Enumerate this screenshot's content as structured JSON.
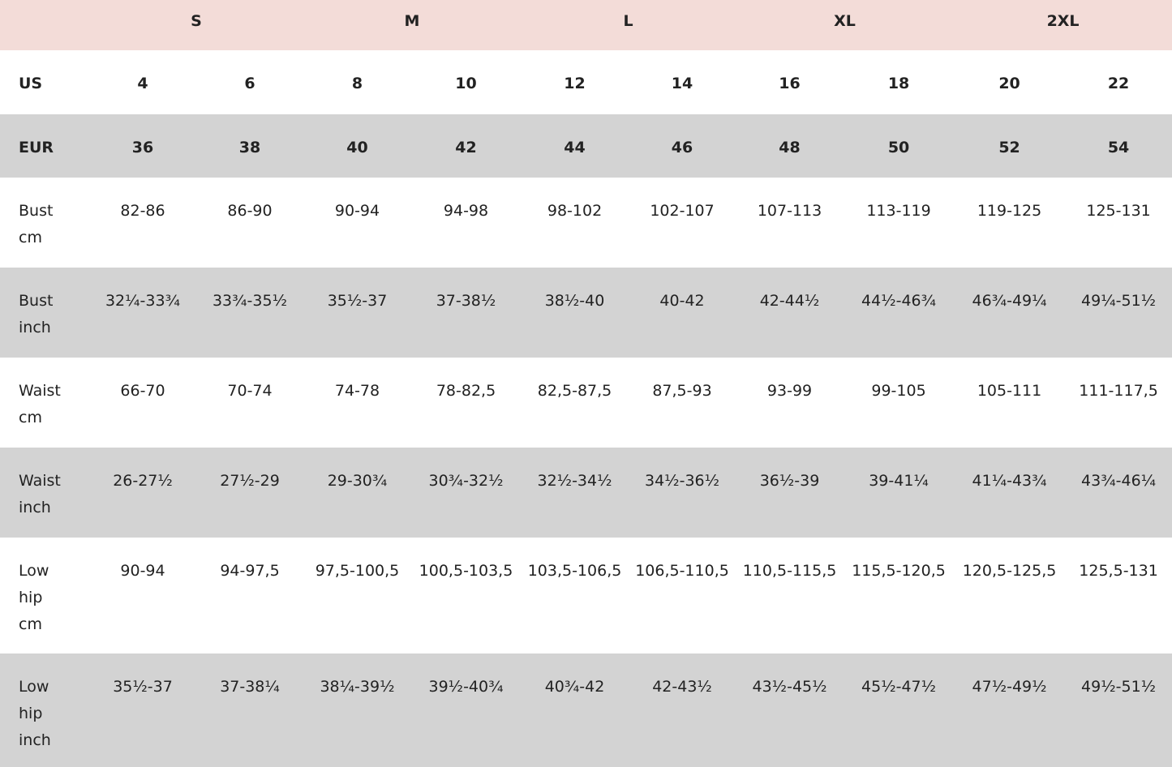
{
  "header": {
    "sizes": [
      "S",
      "M",
      "L",
      "XL",
      "2XL"
    ]
  },
  "table": {
    "rows": [
      {
        "label": "US",
        "cells": [
          "4",
          "6",
          "8",
          "10",
          "12",
          "14",
          "16",
          "18",
          "20",
          "22"
        ]
      },
      {
        "label": "EUR",
        "cells": [
          "36",
          "38",
          "40",
          "42",
          "44",
          "46",
          "48",
          "50",
          "52",
          "54"
        ]
      },
      {
        "label": "Bust cm",
        "cells": [
          "82-86",
          "86-90",
          "90-94",
          "94-98",
          "98-102",
          "102-107",
          "107-113",
          "113-119",
          "119-125",
          "125-131"
        ]
      },
      {
        "label": "Bust inch",
        "cells": [
          "32¼-33¾",
          "33¾-35½",
          "35½-37",
          "37-38½",
          "38½-40",
          "40-42",
          "42-44½",
          "44½-46¾",
          "46¾-49¼",
          "49¼-51½"
        ]
      },
      {
        "label": "Waist cm",
        "cells": [
          "66-70",
          "70-74",
          "74-78",
          "78-82,5",
          "82,5-87,5",
          "87,5-93",
          "93-99",
          "99-105",
          "105-111",
          "111-117,5"
        ]
      },
      {
        "label": "Waist inch",
        "cells": [
          "26-27½",
          "27½-29",
          "29-30¾",
          "30¾-32½",
          "32½-34½",
          "34½-36½",
          "36½-39",
          "39-41¼",
          "41¼-43¾",
          "43¾-46¼"
        ]
      },
      {
        "label": "Low hip cm",
        "cells": [
          "90-94",
          "94-97,5",
          "97,5-100,5",
          "100,5-103,5",
          "103,5-106,5",
          "106,5-110,5",
          "110,5-115,5",
          "115,5-120,5",
          "120,5-125,5",
          "125,5-131"
        ]
      },
      {
        "label": "Low hip inch",
        "cells": [
          "35½-37",
          "37-38¼",
          "38¼-39½",
          "39½-40¾",
          "40¾-42",
          "42-43½",
          "43½-45½",
          "45½-47½",
          "47½-49½",
          "49½-51½"
        ]
      }
    ]
  }
}
